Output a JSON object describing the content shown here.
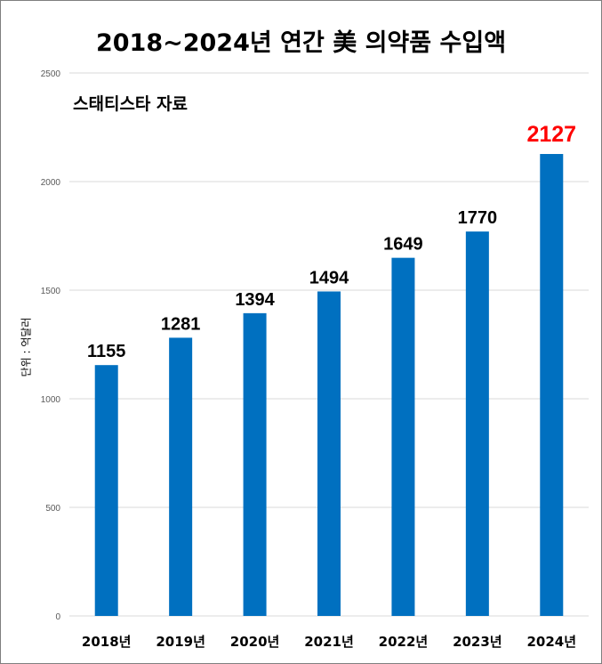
{
  "chart_data": {
    "type": "bar",
    "title": "2018~2024년 연간 美 의약품 수입액",
    "subtitle": "스태티스타 자료",
    "ylabel": "단위 : 억달러",
    "xlabel": "",
    "categories": [
      "2018년",
      "2019년",
      "2020년",
      "2021년",
      "2022년",
      "2023년",
      "2024년"
    ],
    "values": [
      1155,
      1281,
      1394,
      1494,
      1649,
      1770,
      2127
    ],
    "data_labels": [
      "1155",
      "1281",
      "1394",
      "1494",
      "1649",
      "1770",
      "2127"
    ],
    "ylim": [
      0,
      2500
    ],
    "yticks": [
      0,
      500,
      1000,
      1500,
      2000,
      2500
    ],
    "grid": true,
    "colors": {
      "bar": "#0070c0",
      "grid": "#d9d9d9",
      "label": "#000000",
      "highlight_label": "#ff0000"
    },
    "highlight_index": 6
  }
}
